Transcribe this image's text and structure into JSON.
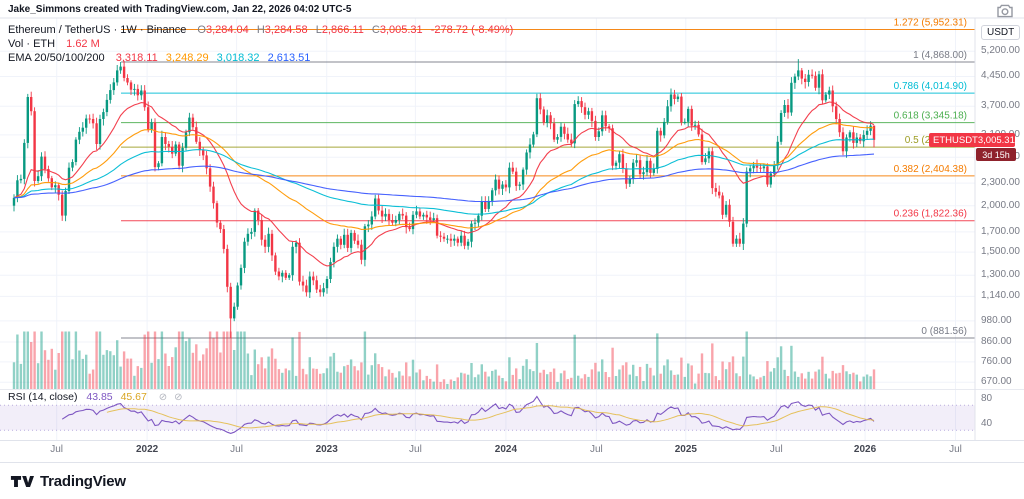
{
  "attribution": "Jake_Simmons created with TradingView.com, Jan 22, 2026 04:02 UTC-5",
  "legend": {
    "title": "Ethereum / TetherUS · 1W · Binance",
    "o_label": "O",
    "o": "3,284.04",
    "h_label": "H",
    "h": "3,284.58",
    "l_label": "L",
    "l": "2,866.11",
    "c_label": "C",
    "c": "3,005.31",
    "change": "-278.72 (-8.49%)"
  },
  "legend_vol": {
    "label": "Vol · ETH",
    "value": "1.62 M"
  },
  "legend_ema": {
    "label": "EMA 20/50/100/200",
    "v20": "3,318.11",
    "v50": "3,248.29",
    "v100": "3,018.32",
    "v200": "2,613.51"
  },
  "legend_rsi": {
    "label": "RSI (14, close)",
    "value": "43.85",
    "ma": "45.67"
  },
  "price_badge": {
    "symbol": "ETHUSDT",
    "price": "3,005.31",
    "countdown": "3d 15h"
  },
  "axis_unit": "USDT",
  "footer": {
    "brand": "TradingView"
  },
  "chart_data": {
    "type": "candlestick",
    "symbol": "ETHUSDT",
    "interval": "1W",
    "exchange": "Binance",
    "scale": "log",
    "first_open": 2000,
    "closes": [
      2100,
      2340,
      2360,
      2950,
      3920,
      3590,
      2330,
      2400,
      2710,
      2510,
      2370,
      2240,
      2270,
      2140,
      1880,
      2190,
      2530,
      2620,
      3010,
      3160,
      3240,
      3430,
      3420,
      3330,
      2930,
      3420,
      3570,
      3850,
      4090,
      4290,
      4620,
      4730,
      4410,
      4290,
      4100,
      4120,
      3960,
      4080,
      3680,
      3200,
      3350,
      2540,
      2600,
      3060,
      2930,
      2880,
      2760,
      2920,
      2560,
      2860,
      3150,
      3450,
      3250,
      2970,
      2820,
      2730,
      2520,
      2250,
      2030,
      1800,
      1730,
      1530,
      1210,
      995,
      1070,
      1220,
      1360,
      1600,
      1680,
      1700,
      1940,
      1830,
      1620,
      1550,
      1680,
      1470,
      1330,
      1290,
      1320,
      1280,
      1300,
      1550,
      1590,
      1250,
      1220,
      1170,
      1290,
      1260,
      1190,
      1170,
      1200,
      1270,
      1410,
      1550,
      1630,
      1570,
      1670,
      1540,
      1690,
      1610,
      1570,
      1430,
      1760,
      1780,
      1870,
      2090,
      1940,
      1870,
      1900,
      1830,
      1800,
      1830,
      1900,
      1880,
      1750,
      1730,
      1890,
      1930,
      1870,
      1890,
      1860,
      1830,
      1850,
      1660,
      1650,
      1630,
      1630,
      1610,
      1630,
      1590,
      1660,
      1560,
      1600,
      1790,
      1800,
      1880,
      2050,
      1960,
      2060,
      2200,
      2350,
      2220,
      2280,
      2240,
      2530,
      2470,
      2260,
      2280,
      2500,
      2780,
      2920,
      3110,
      3890,
      3630,
      3340,
      3500,
      3330,
      3010,
      3060,
      3260,
      3120,
      3010,
      2940,
      3750,
      3820,
      3680,
      3510,
      3590,
      3380,
      3060,
      3170,
      3500,
      3270,
      3230,
      2560,
      2610,
      2750,
      2520,
      2290,
      2360,
      2610,
      2650,
      2430,
      2460,
      2640,
      2450,
      2510,
      3180,
      3090,
      3360,
      3700,
      3980,
      3870,
      3930,
      3350,
      3360,
      3640,
      3280,
      3300,
      3110,
      2620,
      2680,
      2800,
      2230,
      2180,
      2130,
      1890,
      2010,
      1810,
      1580,
      1630,
      1580,
      1790,
      2470,
      2520,
      2560,
      2530,
      2520,
      2550,
      2280,
      2440,
      2570,
      2970,
      3550,
      3730,
      3560,
      4280,
      4450,
      4620,
      4390,
      4300,
      4500,
      4470,
      4150,
      4510,
      3840,
      3980,
      4080,
      3700,
      3420,
      3150,
      2800,
      3050,
      3150,
      2950,
      3050,
      2980,
      3100,
      3180,
      3284.04,
      3005.31
    ],
    "candle_overrides": {
      "31": {
        "high": 4868.0
      },
      "63": {
        "low": 881.56
      },
      "228": {
        "high": 4955.0
      },
      "250": {
        "high": 3284.58,
        "low": 2866.11
      }
    },
    "last_candle": {
      "open": 3284.04,
      "high": 3284.58,
      "low": 2866.11,
      "close": 3005.31
    },
    "ema_periods": [
      20,
      50,
      100,
      200
    ],
    "rsi_period": 14,
    "rsi_last": 43.85,
    "rsi_ma_last": 45.67,
    "volume_last": "1.62 M",
    "colors": {
      "up": "#089981",
      "down": "#f23645",
      "vol_up": "rgba(8,153,129,0.45)",
      "vol_down": "rgba(242,54,69,0.45)",
      "ema": [
        "#f23645",
        "#ff9800",
        "#00bcd4",
        "#3d5afe"
      ],
      "rsi": "#7e57c2",
      "rsi_ma": "#e3bb4a",
      "rsi_band": "rgba(126,87,194,0.10)"
    },
    "fib_levels": [
      {
        "label": "1.272 (5,952.31)",
        "price": 5952.31,
        "color": "#f57c00"
      },
      {
        "label": "1 (4,868.00)",
        "price": 4868.0,
        "color": "#787b86"
      },
      {
        "label": "0.786 (4,014.90)",
        "price": 4014.9,
        "color": "#00bcd4"
      },
      {
        "label": "0.618 (3,345.18)",
        "price": 3345.18,
        "color": "#4caf50"
      },
      {
        "label": "0.5 (2,874.78)",
        "price": 2874.78,
        "color": "#9c9d24"
      },
      {
        "label": "0.382 (2,404.38)",
        "price": 2404.38,
        "color": "#f57c00"
      },
      {
        "label": "0.236 (1,822.36)",
        "price": 1822.36,
        "color": "#f23645"
      },
      {
        "label": "0 (881.56)",
        "price": 881.56,
        "color": "#787b86"
      }
    ],
    "price_axis_ticks": [
      {
        "label": "5,200.00",
        "value": 5200
      },
      {
        "label": "4,450.00",
        "value": 4450
      },
      {
        "label": "3,700.00",
        "value": 3700
      },
      {
        "label": "3,100.00",
        "value": 3100
      },
      {
        "label": "2,700.00",
        "value": 2700
      },
      {
        "label": "2,300.00",
        "value": 2300
      },
      {
        "label": "2,000.00",
        "value": 2000
      },
      {
        "label": "1,700.00",
        "value": 1700
      },
      {
        "label": "1,500.00",
        "value": 1500
      },
      {
        "label": "1,300.00",
        "value": 1300
      },
      {
        "label": "1,140.00",
        "value": 1140
      },
      {
        "label": "980.00",
        "value": 980
      },
      {
        "label": "860.00",
        "value": 860
      },
      {
        "label": "760.00",
        "value": 760
      },
      {
        "label": "670.00",
        "value": 670
      }
    ],
    "rsi_ticks": [
      {
        "label": "80",
        "value": 80
      },
      {
        "label": "40",
        "value": 40
      }
    ],
    "date_ticks": [
      {
        "label": "Jul",
        "week": 12.4,
        "major": false
      },
      {
        "label": "2022",
        "week": 38.7,
        "major": true
      },
      {
        "label": "Jul",
        "week": 64.7,
        "major": false
      },
      {
        "label": "2023",
        "week": 90.9,
        "major": true
      },
      {
        "label": "Jul",
        "week": 116.7,
        "major": false
      },
      {
        "label": "2024",
        "week": 143.0,
        "major": true
      },
      {
        "label": "Jul",
        "week": 169.3,
        "major": false
      },
      {
        "label": "2025",
        "week": 195.3,
        "major": true
      },
      {
        "label": "Jul",
        "week": 221.6,
        "major": false
      },
      {
        "label": "2026",
        "week": 247.4,
        "major": true
      },
      {
        "label": "Jul",
        "week": 273.7,
        "major": false
      }
    ]
  }
}
